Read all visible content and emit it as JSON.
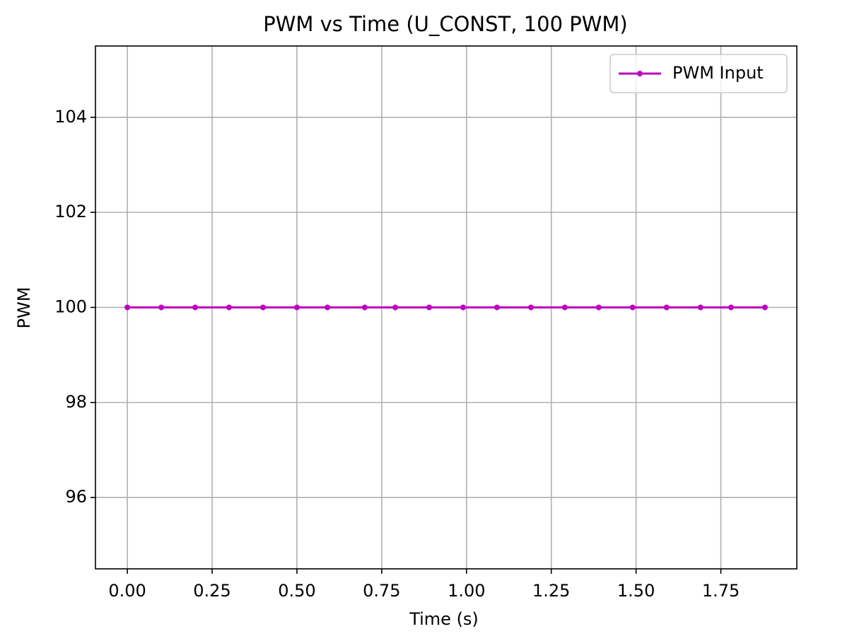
{
  "chart_data": {
    "type": "line",
    "title": "PWM vs Time (U_CONST, 100 PWM)",
    "x_label": "Time (s)",
    "y_label": "PWM",
    "x": [
      0,
      0.1,
      0.2,
      0.3,
      0.4,
      0.5,
      0.59,
      0.7,
      0.79,
      0.89,
      0.99,
      1.09,
      1.19,
      1.29,
      1.39,
      1.49,
      1.59,
      1.69,
      1.78,
      1.88
    ],
    "series": [
      {
        "name": "PWM Input",
        "color": "#bf00bf",
        "values": [
          100,
          100,
          100,
          100,
          100,
          100,
          100,
          100,
          100,
          100,
          100,
          100,
          100,
          100,
          100,
          100,
          100,
          100,
          100,
          100
        ]
      }
    ],
    "xlim": [
      -0.094,
      1.974
    ],
    "ylim": [
      94.5,
      105.5
    ],
    "xticks": [
      {
        "value": 0,
        "label": "0.00"
      },
      {
        "value": 0.25,
        "label": "0.25"
      },
      {
        "value": 0.5,
        "label": "0.50"
      },
      {
        "value": 0.75,
        "label": "0.75"
      },
      {
        "value": 1,
        "label": "1.00"
      },
      {
        "value": 1.25,
        "label": "1.25"
      },
      {
        "value": 1.5,
        "label": "1.50"
      },
      {
        "value": 1.75,
        "label": "1.75"
      }
    ],
    "yticks": [
      96,
      98,
      100,
      102,
      104
    ],
    "grid": true,
    "legend": "upper-right"
  }
}
